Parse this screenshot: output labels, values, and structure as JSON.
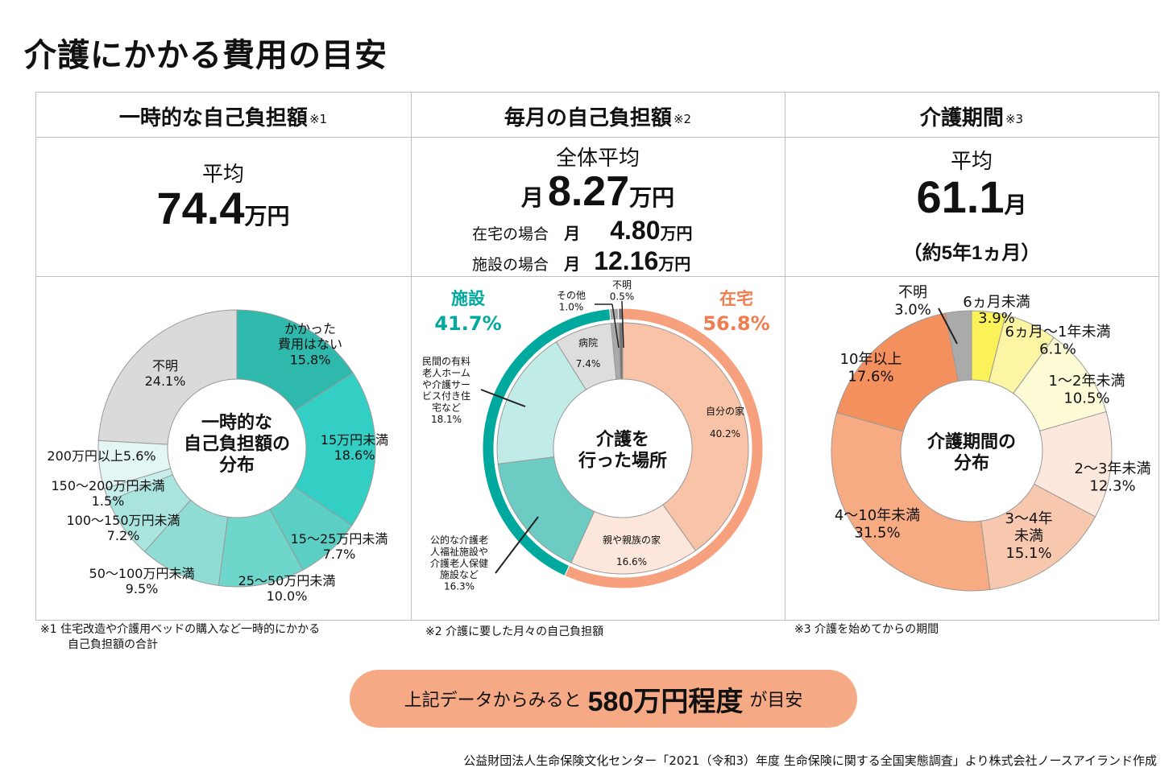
{
  "title": "介護にかかる費用の目安",
  "columns": [
    {
      "header": "一時的な自己負担額",
      "note": "※1",
      "avg_label": "平均",
      "avg_value": "74.4",
      "avg_unit": "万円"
    },
    {
      "header": "毎月の自己負担額",
      "note": "※2",
      "avg_label": "全体平均",
      "avg_prefix": "月",
      "avg_value": "8.27",
      "avg_unit": "万円",
      "sub_rows": [
        {
          "label": "在宅の場合",
          "prefix": "月",
          "value": "4.80",
          "unit": "万円"
        },
        {
          "label": "施設の場合",
          "prefix": "月",
          "value": "12.16",
          "unit": "万円"
        }
      ]
    },
    {
      "header": "介護期間",
      "note": "※3",
      "avg_label": "平均",
      "avg_value": "61.1",
      "avg_unit": "月",
      "avg_sub": "（約5年1ヵ月）"
    }
  ],
  "footnotes": [
    {
      "line1": "※1 住宅改造や介護用ベッドの購入など一時的にかかる",
      "line2": "自己負担額の合計"
    },
    {
      "line1": "※2 介護に要した月々の自己負担額"
    },
    {
      "line1": "※3 介護を始めてからの期間"
    }
  ],
  "summary": {
    "pre": "上記データからみると",
    "amount": "580万円程度",
    "post": "が目安"
  },
  "source": "公益財団法人生命保険文化センター「2021（令和3）年度 生命保険に関する全国実態調査」より株式会社ノースアイランド作成",
  "colors": {
    "teal_dark": "#2fb8ac",
    "teal_main": "#33cfc4",
    "teal_mid": "#5ccfc4",
    "teal_light": "#8fdcd4",
    "teal_pale": "#b4e8e2",
    "teal_paler": "#e3f6f4",
    "gray": "#dadada",
    "gray_mid": "#aaaaaa",
    "orange": "#f7a07e",
    "orange_dark": "#f4905e",
    "salmon": "#f7c2a6",
    "salmon_pale": "#fde6dc",
    "yellow": "#fbf25a",
    "yellow_pale": "#fbf5a4",
    "yellow_paler": "#fdfbd5",
    "peach": "#f8c8ae"
  },
  "chart_data": [
    {
      "type": "pie",
      "center_label": [
        "一時的な",
        "自己負担額の",
        "分布"
      ],
      "slices": [
        {
          "name": "かかった費用はない",
          "name_lines": [
            "かかった",
            "費用はない"
          ],
          "value": 15.8,
          "label": "15.8%",
          "color": "#2fb8ac"
        },
        {
          "name": "15万円未満",
          "name_lines": [
            "15万円未満"
          ],
          "value": 18.6,
          "label": "18.6%",
          "color": "#33cfc4"
        },
        {
          "name": "15〜25万円未満",
          "name_lines": [
            "15〜25万円未満"
          ],
          "value": 7.7,
          "label": "7.7%",
          "color": "#5ccfc4"
        },
        {
          "name": "25〜50万円未満",
          "name_lines": [
            "25〜50万円未満"
          ],
          "value": 10.0,
          "label": "10.0%",
          "color": "#6fd6cc"
        },
        {
          "name": "50〜100万円未満",
          "name_lines": [
            "50〜100万円未満"
          ],
          "value": 9.5,
          "label": "9.5%",
          "color": "#8fdcd4"
        },
        {
          "name": "100〜150万円未満",
          "name_lines": [
            "100〜150万円未満"
          ],
          "value": 7.2,
          "label": "7.2%",
          "color": "#a9e4de"
        },
        {
          "name": "150〜200万円未満",
          "name_lines": [
            "150〜200万円未満"
          ],
          "value": 1.5,
          "label": "1.5%",
          "color": "#c7eeea"
        },
        {
          "name": "200万円以上",
          "name_lines": [
            "200万円以上"
          ],
          "value": 5.6,
          "label": "5.6%",
          "color": "#e3f6f4"
        },
        {
          "name": "不明",
          "name_lines": [
            "不明"
          ],
          "value": 24.1,
          "label": "24.1%",
          "color": "#dadada"
        }
      ]
    },
    {
      "type": "pie",
      "center_label": [
        "介護を",
        "行った場所"
      ],
      "outer_ring": [
        {
          "name": "在宅",
          "value": 56.8,
          "label": "56.8%",
          "color": "#f7a07e"
        },
        {
          "name": "施設",
          "value": 41.7,
          "label": "41.7%",
          "color": "#00a99d"
        },
        {
          "name": "その他",
          "value": 1.0,
          "label": "",
          "color": "#aaaaaa"
        },
        {
          "name": "不明",
          "value": 0.5,
          "label": "",
          "color": "#777777"
        }
      ],
      "slices": [
        {
          "name": "自分の家",
          "name_lines": [
            "自分の家"
          ],
          "value": 40.2,
          "label": "40.2%",
          "color": "#f9c3a8"
        },
        {
          "name": "親や親族の家",
          "name_lines": [
            "親や親族の家"
          ],
          "value": 16.6,
          "label": "16.6%",
          "color": "#fde6dc"
        },
        {
          "name": "公的な介護老人福祉施設や介護老人保健施設など",
          "name_lines": [
            "公的な介護老",
            "人福祉施設や",
            "介護老人保健",
            "施設など"
          ],
          "value": 16.3,
          "label": "16.3%",
          "color": "#6ccbc3"
        },
        {
          "name": "民間の有料老人ホームや介護サービス付き住宅など",
          "name_lines": [
            "民間の有料",
            "老人ホーム",
            "や介護サー",
            "ビス付き住",
            "宅など"
          ],
          "value": 18.1,
          "label": "18.1%",
          "color": "#c0ebe6"
        },
        {
          "name": "病院",
          "name_lines": [
            "病院"
          ],
          "value": 7.4,
          "label": "7.4%",
          "color": "#dddddd"
        },
        {
          "name": "その他",
          "name_lines": [
            "その他"
          ],
          "value": 1.0,
          "label": "1.0%",
          "color": "#aaaaaa"
        },
        {
          "name": "不明",
          "name_lines": [
            "不明"
          ],
          "value": 0.5,
          "label": "0.5%",
          "color": "#777777"
        }
      ]
    },
    {
      "type": "pie",
      "center_label": [
        "介護期間の",
        "分布"
      ],
      "slices": [
        {
          "name": "6ヵ月未満",
          "name_lines": [
            "6ヵ月未満"
          ],
          "value": 3.9,
          "label": "3.9%",
          "color": "#fbf25a"
        },
        {
          "name": "6ヵ月〜1年未満",
          "name_lines": [
            "6ヵ月〜1年未満"
          ],
          "value": 6.1,
          "label": "6.1%",
          "color": "#fbf5a4"
        },
        {
          "name": "1〜2年未満",
          "name_lines": [
            "1〜2年未満"
          ],
          "value": 10.5,
          "label": "10.5%",
          "color": "#fdfbd5"
        },
        {
          "name": "2〜3年未満",
          "name_lines": [
            "2〜3年未満"
          ],
          "value": 12.3,
          "label": "12.3%",
          "color": "#fde8de"
        },
        {
          "name": "3〜4年未満",
          "name_lines": [
            "3〜4年",
            "未満"
          ],
          "value": 15.1,
          "label": "15.1%",
          "color": "#f8c8ae"
        },
        {
          "name": "4〜10年未満",
          "name_lines": [
            "4〜10年未満"
          ],
          "value": 31.5,
          "label": "31.5%",
          "color": "#f7ab83"
        },
        {
          "name": "10年以上",
          "name_lines": [
            "10年以上"
          ],
          "value": 17.6,
          "label": "17.6%",
          "color": "#f4905e"
        },
        {
          "name": "不明",
          "name_lines": [
            "不明"
          ],
          "value": 3.0,
          "label": "3.0%",
          "color": "#aaaaaa"
        }
      ]
    }
  ]
}
